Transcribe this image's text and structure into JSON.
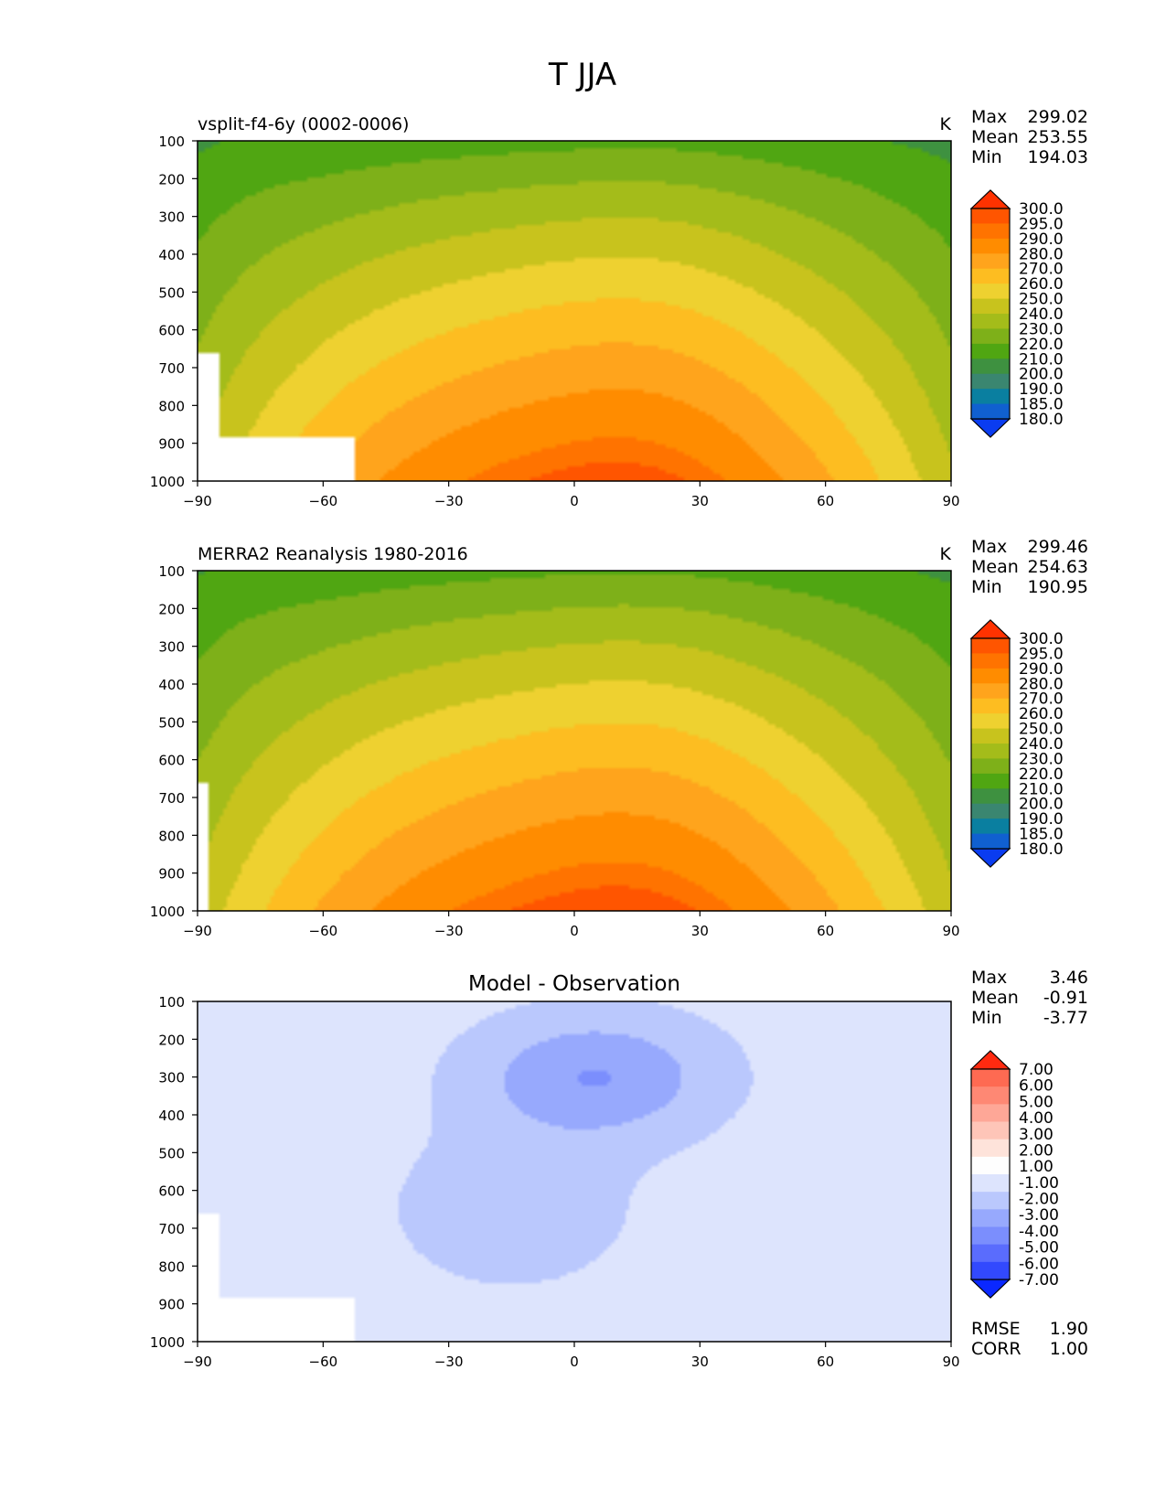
{
  "figure": {
    "title": "T JJA"
  },
  "chart_data": [
    {
      "type": "heatmap",
      "kind": "field",
      "title": "vsplit-f4-6y (0002-0006)",
      "units": "K",
      "stats": [
        {
          "label": "Max",
          "value": "299.02"
        },
        {
          "label": "Mean",
          "value": "253.55"
        },
        {
          "label": "Min",
          "value": "194.03"
        }
      ],
      "x_ticks": [
        "−90",
        "−60",
        "−30",
        "0",
        "30",
        "60",
        "90"
      ],
      "y_ticks": [
        "100",
        "200",
        "300",
        "400",
        "500",
        "600",
        "700",
        "800",
        "900",
        "1000"
      ],
      "xlim": [
        -90,
        90
      ],
      "ylim": [
        1000,
        100
      ],
      "y_inverted": true,
      "colorbar_labels": [
        "300.0",
        "295.0",
        "290.0",
        "280.0",
        "270.0",
        "260.0",
        "250.0",
        "240.0",
        "230.0",
        "220.0",
        "210.0",
        "200.0",
        "190.0",
        "185.0",
        "180.0"
      ],
      "colorbar_colors": [
        "#ff3200",
        "#ff5500",
        "#ff7300",
        "#ff8c00",
        "#ffa41c",
        "#fdbd21",
        "#eed130",
        "#c8c31d",
        "#a4bc1a",
        "#7eb019",
        "#50a612",
        "#3e9140",
        "#3a8670",
        "#0a7fa0",
        "#1060d0",
        "#0a3cf0"
      ],
      "extend_low_color": "#0a3cf0",
      "extend_high_color": "#ff3200",
      "model_field": "a",
      "approx_surface": "surface1"
    },
    {
      "type": "heatmap",
      "kind": "field",
      "title": "MERRA2 Reanalysis 1980-2016",
      "units": "K",
      "stats": [
        {
          "label": "Max",
          "value": "299.46"
        },
        {
          "label": "Mean",
          "value": "254.63"
        },
        {
          "label": "Min",
          "value": "190.95"
        }
      ],
      "x_ticks": [
        "−90",
        "−60",
        "−30",
        "0",
        "30",
        "60",
        "90"
      ],
      "y_ticks": [
        "100",
        "200",
        "300",
        "400",
        "500",
        "600",
        "700",
        "800",
        "900",
        "1000"
      ],
      "xlim": [
        -90,
        90
      ],
      "ylim": [
        1000,
        100
      ],
      "y_inverted": true,
      "colorbar_labels": [
        "300.0",
        "295.0",
        "290.0",
        "280.0",
        "270.0",
        "260.0",
        "250.0",
        "240.0",
        "230.0",
        "220.0",
        "210.0",
        "200.0",
        "190.0",
        "185.0",
        "180.0"
      ],
      "colorbar_colors": [
        "#ff3200",
        "#ff5500",
        "#ff7300",
        "#ff8c00",
        "#ffa41c",
        "#fdbd21",
        "#eed130",
        "#c8c31d",
        "#a4bc1a",
        "#7eb019",
        "#50a612",
        "#3e9140",
        "#3a8670",
        "#0a7fa0",
        "#1060d0",
        "#0a3cf0"
      ],
      "extend_low_color": "#0a3cf0",
      "extend_high_color": "#ff3200",
      "model_field": "b",
      "approx_surface": "surface2"
    },
    {
      "type": "heatmap",
      "kind": "diff",
      "title": "Model - Observation",
      "units": "",
      "stats": [
        {
          "label": "Max",
          "value": "3.46"
        },
        {
          "label": "Mean",
          "value": "-0.91"
        },
        {
          "label": "Min",
          "value": "-3.77"
        }
      ],
      "extra_stats": [
        {
          "label": "RMSE",
          "value": "1.90"
        },
        {
          "label": "CORR",
          "value": "1.00"
        }
      ],
      "x_ticks": [
        "−90",
        "−60",
        "−30",
        "0",
        "30",
        "60",
        "90"
      ],
      "y_ticks": [
        "100",
        "200",
        "300",
        "400",
        "500",
        "600",
        "700",
        "800",
        "900",
        "1000"
      ],
      "xlim": [
        -90,
        90
      ],
      "ylim": [
        1000,
        100
      ],
      "y_inverted": true,
      "colorbar_labels": [
        "7.00",
        "6.00",
        "5.00",
        "4.00",
        "3.00",
        "2.00",
        "1.00",
        "-1.00",
        "-2.00",
        "-3.00",
        "-4.00",
        "-5.00",
        "-6.00",
        "-7.00"
      ],
      "colorbar_colors": [
        "#ff3e22",
        "#fe6a52",
        "#fe8874",
        "#fea797",
        "#fec5b8",
        "#fee3da",
        "#fefefe",
        "#dde4fd",
        "#bac8fd",
        "#97a9fd",
        "#7b8efd",
        "#5a6cfd",
        "#3249fe",
        "#0a28ff"
      ],
      "extend_low_color": "#0a28ff",
      "extend_high_color": "#ff2a10",
      "model_field": "diff",
      "approx_surface": "surface1"
    }
  ]
}
